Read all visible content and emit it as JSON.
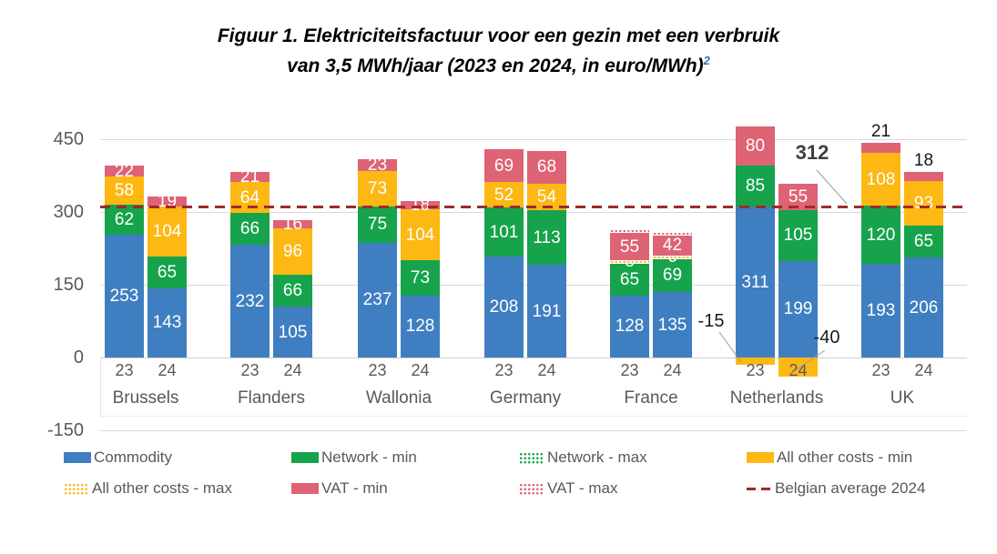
{
  "title": {
    "line1": "Figuur 1. Elektriciteitsfactuur voor een gezin met een verbruik",
    "line2": "van 3,5 MWh/jaar (2023 en 2024, in euro/MWh)",
    "footnote_marker": "2"
  },
  "chart_data": {
    "type": "bar",
    "stacked": true,
    "unit": "euro/MWh",
    "ylim": [
      -150,
      450
    ],
    "yticks": [
      450,
      300,
      150,
      0,
      -150
    ],
    "grid": true,
    "legend_position": "bottom",
    "reference_line": {
      "label": "Belgian average 2024",
      "value": 312
    },
    "segment_order": [
      "commodity",
      "network",
      "other",
      "vat"
    ],
    "colors": {
      "commodity": "#3F7FC1",
      "network": "#16A34C",
      "other": "#FDB813",
      "vat": "#DD6375",
      "reference": "#9E2B2B"
    },
    "groups": [
      {
        "label": "Brussels",
        "bars": [
          {
            "year": "23",
            "commodity": 253,
            "network": 62,
            "other": 58,
            "vat": 22
          },
          {
            "year": "24",
            "commodity": 143,
            "network": 65,
            "other": 104,
            "vat": 19
          }
        ]
      },
      {
        "label": "Flanders",
        "bars": [
          {
            "year": "23",
            "commodity": 232,
            "network": 66,
            "other": 64,
            "vat": 21
          },
          {
            "year": "24",
            "commodity": 105,
            "network": 66,
            "other": 96,
            "vat": 16
          }
        ]
      },
      {
        "label": "Wallonia",
        "bars": [
          {
            "year": "23",
            "commodity": 237,
            "network": 75,
            "other": 73,
            "vat": 23
          },
          {
            "year": "24",
            "commodity": 128,
            "network": 73,
            "other": 104,
            "vat": 18
          }
        ]
      },
      {
        "label": "Germany",
        "bars": [
          {
            "year": "23",
            "commodity": 208,
            "network": 101,
            "other": 52,
            "vat": 69
          },
          {
            "year": "24",
            "commodity": 191,
            "network": 113,
            "other": 54,
            "vat": 68
          }
        ]
      },
      {
        "label": "France",
        "bars": [
          {
            "year": "23",
            "commodity": 128,
            "network": 65,
            "other": 8,
            "vat": 55,
            "max_strips": true
          },
          {
            "year": "24",
            "commodity": 135,
            "network": 69,
            "other": 6,
            "vat": 42,
            "max_strips": true
          }
        ]
      },
      {
        "label": "Netherlands",
        "bars": [
          {
            "year": "23",
            "commodity": 311,
            "network": 85,
            "other": -15,
            "vat": 80,
            "other_annotation": "-15"
          },
          {
            "year": "24",
            "commodity": 199,
            "network": 105,
            "other": -40,
            "vat": 55,
            "other_annotation": "-40"
          }
        ]
      },
      {
        "label": "UK",
        "bars": [
          {
            "year": "23",
            "commodity": 193,
            "network": 120,
            "other": 108,
            "vat": 21,
            "vat_label_outside": true
          },
          {
            "year": "24",
            "commodity": 206,
            "network": 65,
            "other": 93,
            "vat": 18,
            "vat_label_outside": true
          }
        ]
      }
    ],
    "annotations": [
      {
        "id": "avg",
        "text": "312"
      },
      {
        "id": "nl23",
        "text": "-15"
      },
      {
        "id": "nl24",
        "text": "-40"
      }
    ]
  },
  "legend": {
    "items": [
      {
        "label": "Commodity",
        "swatch": "solid",
        "key": "commodity"
      },
      {
        "label": "Network - min",
        "swatch": "solid",
        "key": "network"
      },
      {
        "label": "Network - max",
        "swatch": "dotted",
        "key": "network"
      },
      {
        "label": "All other costs - min",
        "swatch": "solid",
        "key": "other"
      },
      {
        "label": "All other costs - max",
        "swatch": "dotted",
        "key": "other"
      },
      {
        "label": "VAT - min",
        "swatch": "solid",
        "key": "vat"
      },
      {
        "label": "VAT - max",
        "swatch": "dotted",
        "key": "vat"
      },
      {
        "label": "Belgian average 2024",
        "swatch": "dash",
        "key": "reference"
      }
    ]
  }
}
